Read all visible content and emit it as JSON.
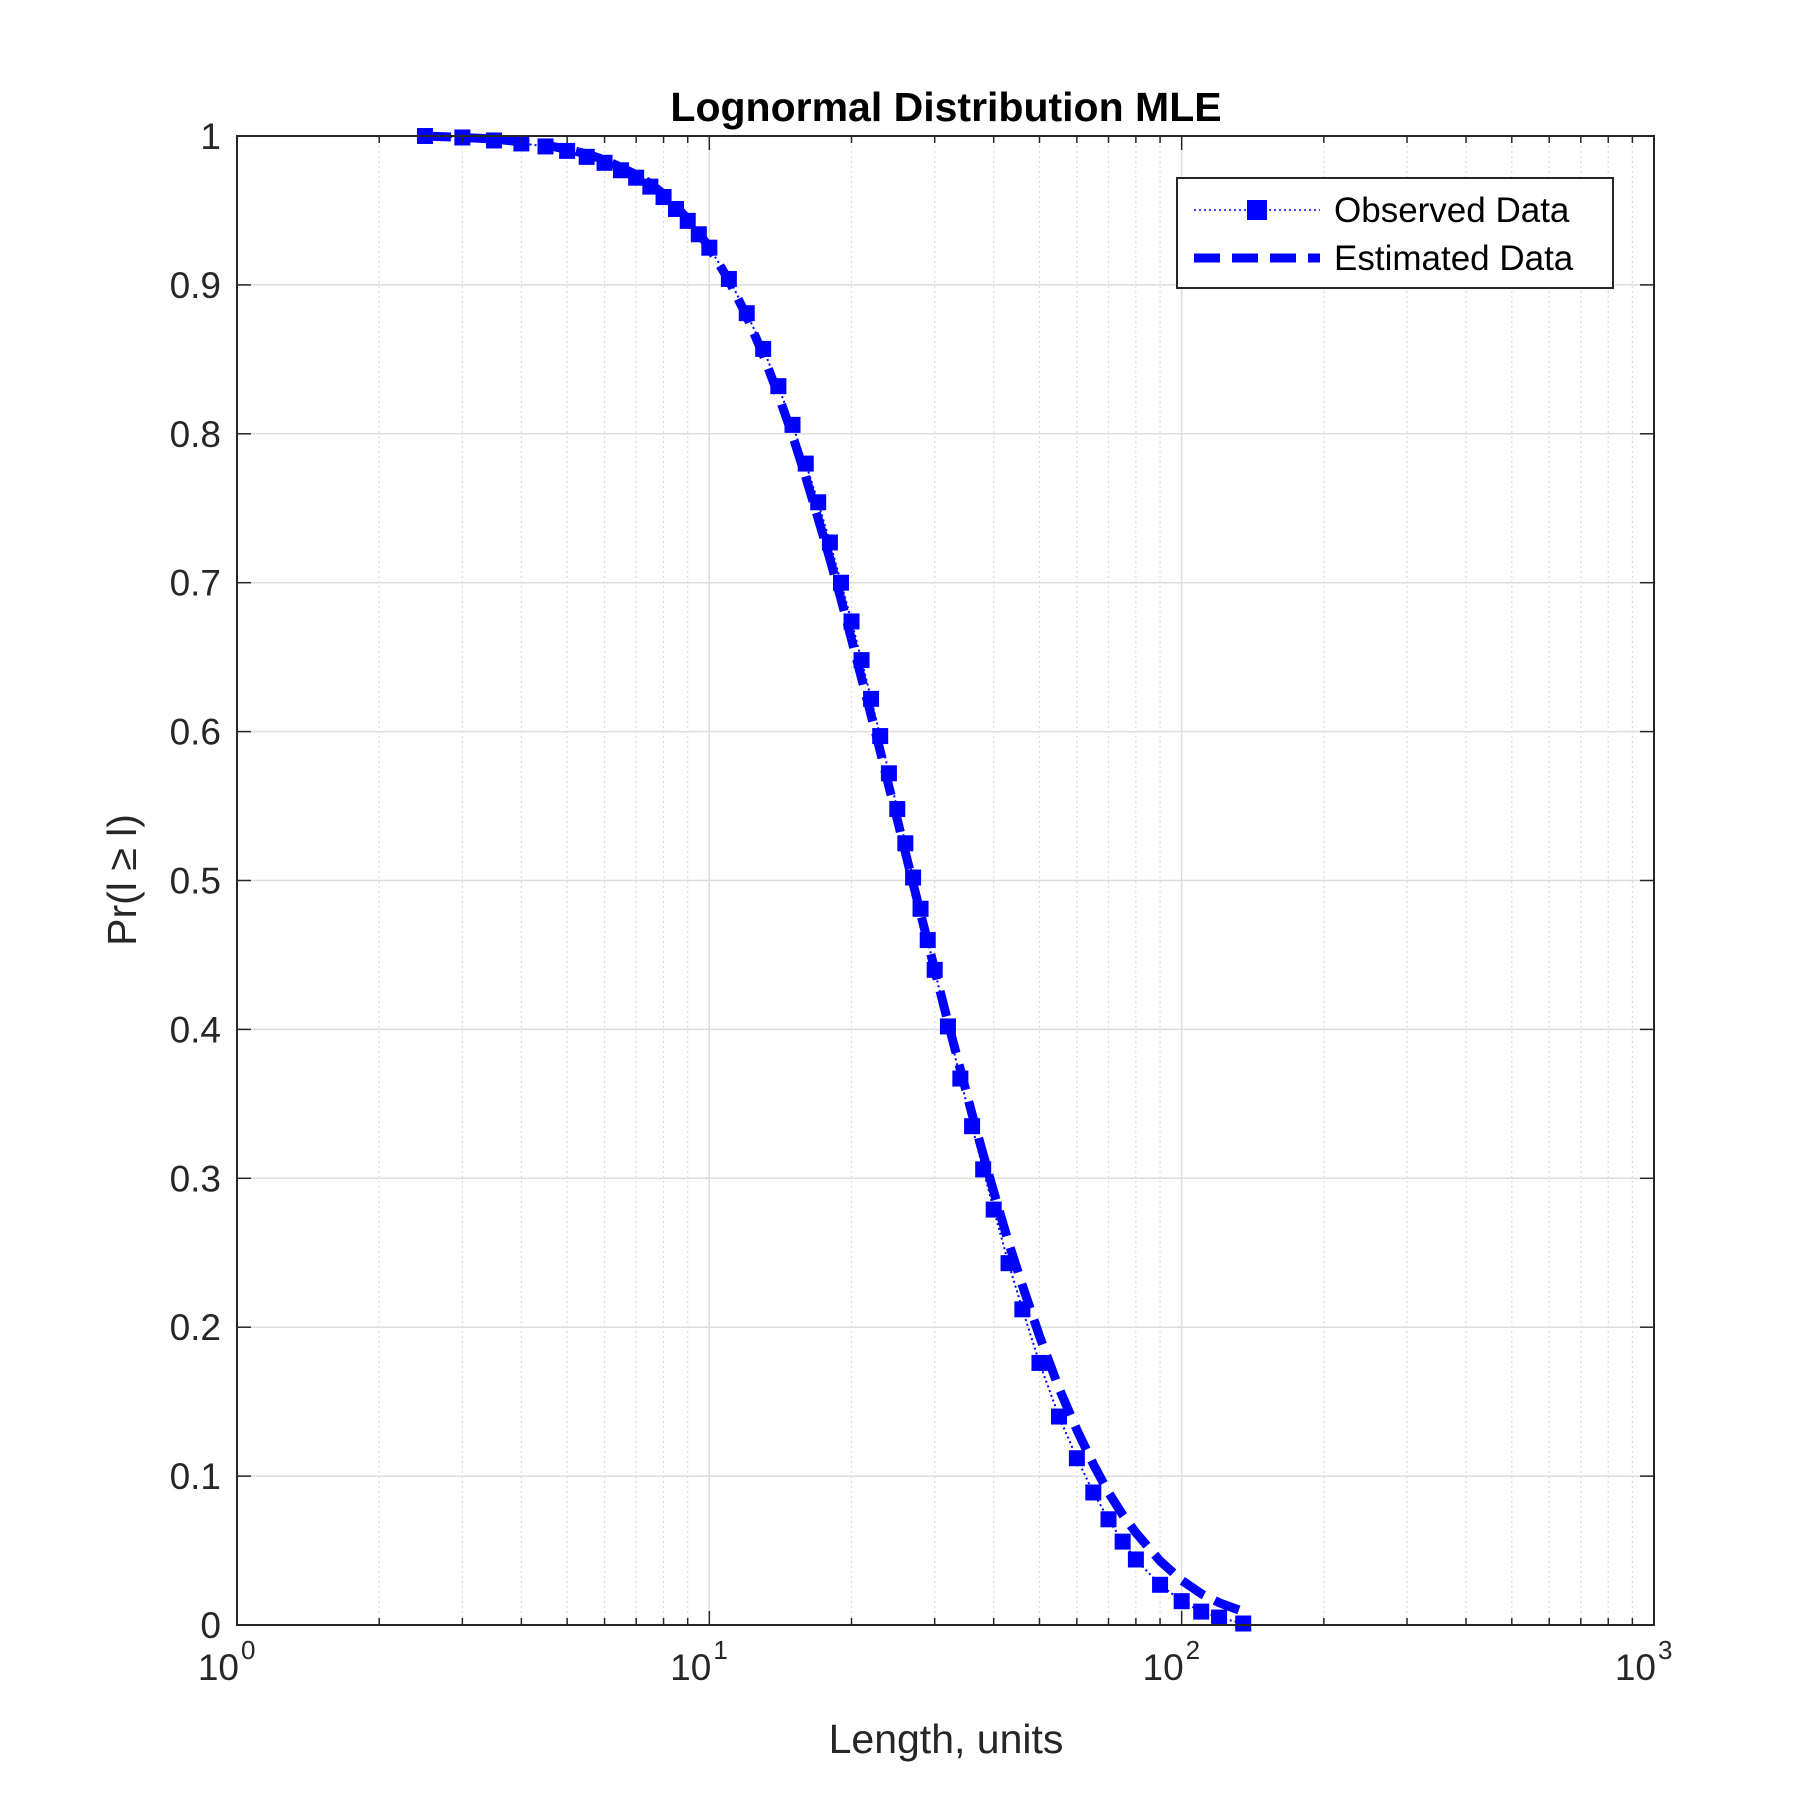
{
  "chart_data": {
    "type": "line",
    "title": "Lognormal Distribution MLE",
    "xlabel": "Length, units",
    "ylabel": "Pr(l ≥ l)",
    "xscale": "log",
    "xlim": [
      1,
      1000
    ],
    "ylim": [
      0,
      1
    ],
    "grid": true,
    "minor_grid": true,
    "legend_position": "top-right",
    "x_ticks": [
      {
        "base": "10",
        "exp": "0",
        "value": 1
      },
      {
        "base": "10",
        "exp": "1",
        "value": 10
      },
      {
        "base": "10",
        "exp": "2",
        "value": 100
      },
      {
        "base": "10",
        "exp": "3",
        "value": 1000
      }
    ],
    "y_ticks": [
      "0",
      "0.1",
      "0.2",
      "0.3",
      "0.4",
      "0.5",
      "0.6",
      "0.7",
      "0.8",
      "0.9",
      "1"
    ],
    "series": [
      {
        "name": "Observed Data",
        "style": "dotted-line-square-markers",
        "color": "#0000ff",
        "x": [
          2.5,
          3,
          3.5,
          4,
          4.5,
          5,
          5.5,
          6,
          6.5,
          7,
          7.5,
          8,
          8.5,
          9,
          9.5,
          10,
          11,
          12,
          13,
          14,
          15,
          16,
          17,
          18,
          19,
          20,
          21,
          22,
          23,
          24,
          25,
          26,
          27,
          28,
          29,
          30,
          32,
          34,
          36,
          38,
          40,
          43,
          46,
          50,
          55,
          60,
          65,
          70,
          75,
          80,
          90,
          100,
          110,
          120,
          135
        ],
        "values": [
          1.0,
          0.999,
          0.997,
          0.995,
          0.993,
          0.99,
          0.986,
          0.982,
          0.977,
          0.972,
          0.966,
          0.959,
          0.951,
          0.943,
          0.934,
          0.925,
          0.904,
          0.881,
          0.857,
          0.832,
          0.806,
          0.78,
          0.754,
          0.727,
          0.7,
          0.674,
          0.648,
          0.622,
          0.597,
          0.572,
          0.548,
          0.525,
          0.502,
          0.481,
          0.46,
          0.44,
          0.402,
          0.367,
          0.335,
          0.306,
          0.279,
          0.243,
          0.212,
          0.176,
          0.14,
          0.112,
          0.089,
          0.071,
          0.056,
          0.044,
          0.027,
          0.016,
          0.009,
          0.005,
          0.001
        ]
      },
      {
        "name": "Estimated Data",
        "style": "dashed-line",
        "color": "#0000ff",
        "x": [
          2.5,
          3,
          3.5,
          4,
          4.5,
          5,
          5.5,
          6,
          6.5,
          7,
          7.5,
          8,
          8.5,
          9,
          9.5,
          10,
          11,
          12,
          13,
          14,
          15,
          16,
          17,
          18,
          19,
          20,
          21,
          22,
          23,
          24,
          25,
          26,
          27,
          28,
          29,
          30,
          32,
          34,
          36,
          38,
          40,
          43,
          46,
          50,
          55,
          60,
          65,
          70,
          75,
          80,
          90,
          100,
          110,
          120,
          135
        ],
        "values": [
          1.0,
          0.999,
          0.998,
          0.996,
          0.994,
          0.991,
          0.988,
          0.984,
          0.979,
          0.974,
          0.968,
          0.961,
          0.953,
          0.944,
          0.935,
          0.925,
          0.903,
          0.879,
          0.853,
          0.826,
          0.799,
          0.771,
          0.743,
          0.716,
          0.689,
          0.662,
          0.636,
          0.611,
          0.587,
          0.563,
          0.541,
          0.519,
          0.498,
          0.478,
          0.459,
          0.44,
          0.405,
          0.373,
          0.343,
          0.316,
          0.291,
          0.257,
          0.228,
          0.194,
          0.159,
          0.131,
          0.108,
          0.089,
          0.074,
          0.062,
          0.043,
          0.03,
          0.021,
          0.015,
          0.009
        ]
      }
    ]
  },
  "colors": {
    "series": "#0000ff",
    "axis": "#262626",
    "grid": "#dcdcdc",
    "background": "#ffffff"
  }
}
